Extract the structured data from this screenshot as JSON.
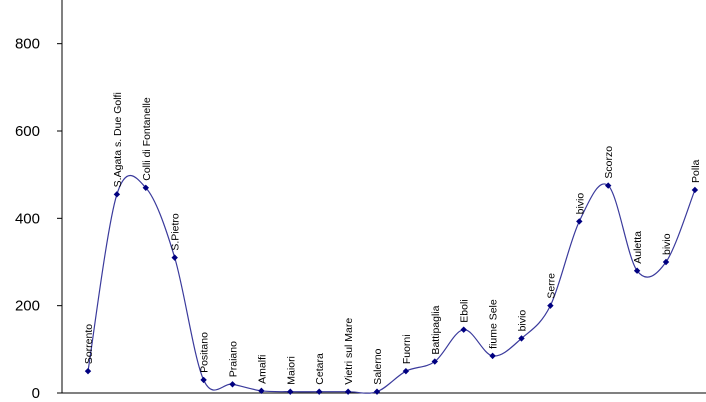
{
  "chart_data": {
    "type": "line",
    "title": "",
    "xlabel": "",
    "ylabel": "",
    "ylim": [
      0,
      900
    ],
    "yticks": [
      0,
      200,
      400,
      600,
      800
    ],
    "smooth": true,
    "grid": false,
    "legend": "none",
    "series": [
      {
        "color": "#3a3a9c",
        "marker": "diamond",
        "marker_color": "#000080",
        "points": [
          {
            "label": "Sorrento",
            "value": 50
          },
          {
            "label": "S.Agata s. Due Golfi",
            "value": 455
          },
          {
            "label": "Colli di Fontanelle",
            "value": 470
          },
          {
            "label": "S.Pietro",
            "value": 310
          },
          {
            "label": "Positano",
            "value": 30
          },
          {
            "label": "Praiano",
            "value": 20
          },
          {
            "label": "Amalfi",
            "value": 5
          },
          {
            "label": "Maiori",
            "value": 3
          },
          {
            "label": "Cetara",
            "value": 3
          },
          {
            "label": "Vietri sul Mare",
            "value": 3
          },
          {
            "label": "Salerno",
            "value": 3
          },
          {
            "label": "Fuorni",
            "value": 50
          },
          {
            "label": "Battipaglia",
            "value": 72
          },
          {
            "label": "Eboli",
            "value": 145
          },
          {
            "label": "fiume Sele",
            "value": 85
          },
          {
            "label": "bivio",
            "value": 125
          },
          {
            "label": "Serre",
            "value": 200
          },
          {
            "label": "bivio",
            "value": 393
          },
          {
            "label": "Scorzo",
            "value": 475
          },
          {
            "label": "Auletta",
            "value": 280
          },
          {
            "label": "bivio",
            "value": 300
          },
          {
            "label": "Polla",
            "value": 465
          }
        ]
      }
    ]
  }
}
